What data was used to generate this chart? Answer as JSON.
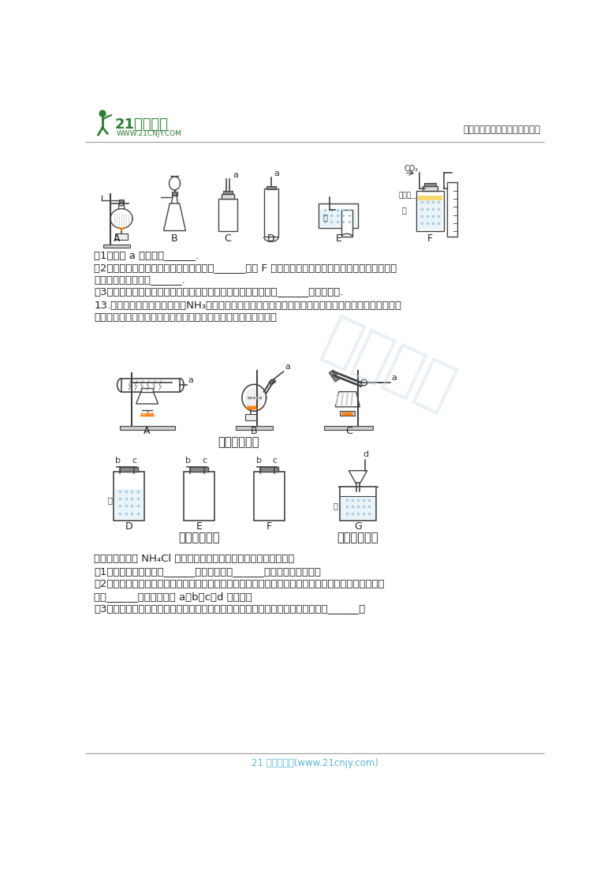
{
  "bg_color": "#ffffff",
  "header_line_color": "#999999",
  "footer_line_color": "#999999",
  "logo_text": "21世纪教育",
  "logo_url": "WWW.21CNJY.COM",
  "header_right": "中小学教育资源及组卷应用平台",
  "footer_center": "21 世纪教育网(www.21cnjy.com)",
  "footer_color": "#5bb8d4",
  "watermark_color": "#c8dce8",
  "section_title": "氨气发生装置",
  "section_title2": "氨气收集装置",
  "section_title3": "氨气吸收装置",
  "text_color": "#222222",
  "gray": "#555555",
  "light_gray": "#aaaaaa",
  "line1": "（1）仪器 a 的名称是______.",
  "line2a": "（2）实验室制取二氧化碳的化学方程式是______，用 F 来测量生成二氧化碳的体积，其中在水面上放",
  "line2b": "一层植物油的目的是______.",
  "line3": "（3）实验室用高锰酸钾制取并收集较纯净的氧气所选用的装置是______（填序号）.",
  "line4a": "13.已知：相同条件下，氨气（NH₃）的密度比空气小，极易溶于水，其水溶液称为氨水，氨气有刺激性气",
  "line4b": "味，不能排放到空气中。某同学对其制备与性质进行了如下探究：",
  "lineA": "氨气制取：固体 NH₄Cl 与足量消石灰固体混合加热可以制取氨气。",
  "lineB1": "（1）选择的发生装置是______，收集装置是______（选填大写字母）。",
  "lineB2a": "（2）结合选择的装置完成氨气的制取、收集并吸收氨气制取氨水，按气流顺序各装置的接口从左到右依",
  "lineB2b": "次为______（用小写字母 a、b、c、d 表示）。",
  "lineB3": "（3）充分反应后冷却，将残余固体转移到烧杯中，加水溶解，还需要的玻璃仪器是______。"
}
